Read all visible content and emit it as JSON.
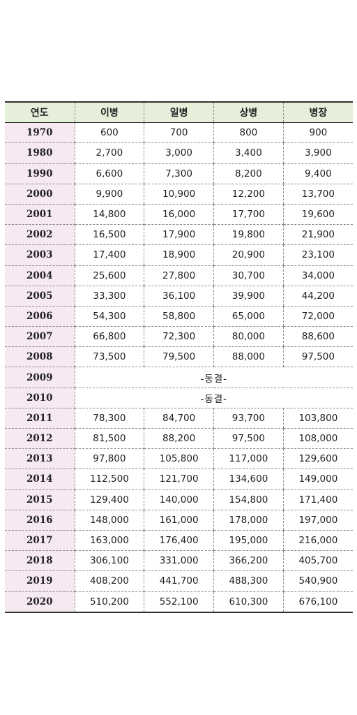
{
  "table": {
    "headers": [
      "연도",
      "이병",
      "일병",
      "상병",
      "병장"
    ],
    "rows": [
      {
        "year": "1970",
        "values": [
          "600",
          "700",
          "800",
          "900"
        ]
      },
      {
        "year": "1980",
        "values": [
          "2,700",
          "3,000",
          "3,400",
          "3,900"
        ]
      },
      {
        "year": "1990",
        "values": [
          "6,600",
          "7,300",
          "8,200",
          "9,400"
        ]
      },
      {
        "year": "2000",
        "values": [
          "9,900",
          "10,900",
          "12,200",
          "13,700"
        ]
      },
      {
        "year": "2001",
        "values": [
          "14,800",
          "16,000",
          "17,700",
          "19,600"
        ]
      },
      {
        "year": "2002",
        "values": [
          "16,500",
          "17,900",
          "19,800",
          "21,900"
        ]
      },
      {
        "year": "2003",
        "values": [
          "17,400",
          "18,900",
          "20,900",
          "23,100"
        ]
      },
      {
        "year": "2004",
        "values": [
          "25,600",
          "27,800",
          "30,700",
          "34,000"
        ]
      },
      {
        "year": "2005",
        "values": [
          "33,300",
          "36,100",
          "39,900",
          "44,200"
        ]
      },
      {
        "year": "2006",
        "values": [
          "54,300",
          "58,800",
          "65,000",
          "72,000"
        ]
      },
      {
        "year": "2007",
        "values": [
          "66,800",
          "72,300",
          "80,000",
          "88,600"
        ]
      },
      {
        "year": "2008",
        "values": [
          "73,500",
          "79,500",
          "88,000",
          "97,500"
        ]
      },
      {
        "year": "2009",
        "merged": "-동결-"
      },
      {
        "year": "2010",
        "merged": "-동결-"
      },
      {
        "year": "2011",
        "values": [
          "78,300",
          "84,700",
          "93,700",
          "103,800"
        ]
      },
      {
        "year": "2012",
        "values": [
          "81,500",
          "88,200",
          "97,500",
          "108,000"
        ]
      },
      {
        "year": "2013",
        "values": [
          "97,800",
          "105,800",
          "117,000",
          "129,600"
        ]
      },
      {
        "year": "2014",
        "values": [
          "112,500",
          "121,700",
          "134,600",
          "149,000"
        ]
      },
      {
        "year": "2015",
        "values": [
          "129,400",
          "140,000",
          "154,800",
          "171,400"
        ]
      },
      {
        "year": "2016",
        "values": [
          "148,000",
          "161,000",
          "178,000",
          "197,000"
        ]
      },
      {
        "year": "2017",
        "values": [
          "163,000",
          "176,400",
          "195,000",
          "216,000"
        ]
      },
      {
        "year": "2018",
        "values": [
          "306,100",
          "331,000",
          "366,200",
          "405,700"
        ]
      },
      {
        "year": "2019",
        "values": [
          "408,200",
          "441,700",
          "488,300",
          "540,900"
        ]
      },
      {
        "year": "2020",
        "values": [
          "510,200",
          "552,100",
          "610,300",
          "676,100"
        ]
      }
    ]
  }
}
